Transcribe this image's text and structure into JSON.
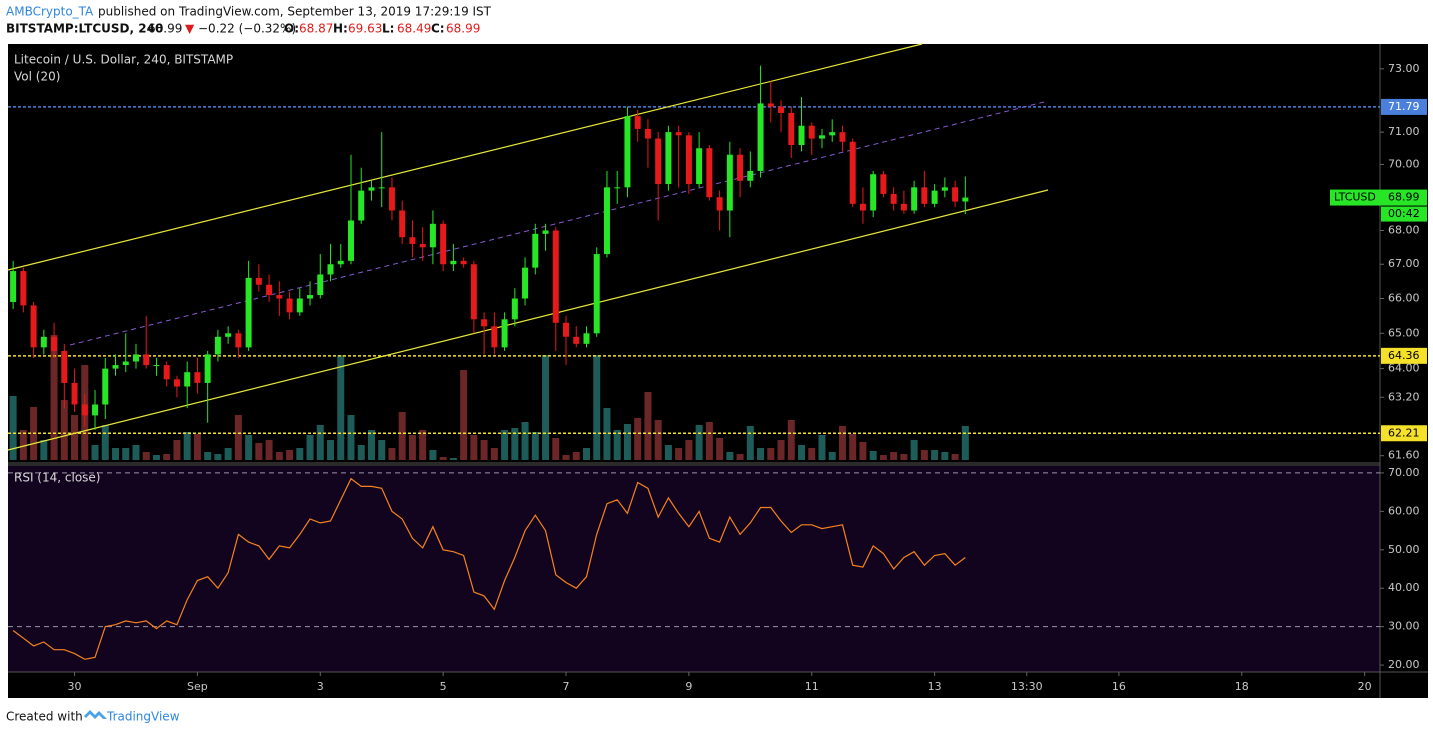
{
  "header": {
    "author": "AMBCrypto_TA",
    "published": "published on TradingView.com, September 13, 2019 17:29:19 IST",
    "symbol": "BITSTAMP:LTCUSD, 240",
    "price": "68.99",
    "change": "−0.22 (−0.32%)",
    "ohlc": [
      {
        "label": "O:",
        "value": "68.87"
      },
      {
        "label": "H:",
        "value": "69.63"
      },
      {
        "label": "L:",
        "value": "68.49"
      },
      {
        "label": "C:",
        "value": "68.99"
      }
    ]
  },
  "chart_data": {
    "type": "candlestick",
    "title": "Litecoin / U.S. Dollar, 240, BITSTAMP",
    "volume_label": "Vol (20)",
    "rsi_label": "RSI (14, close)",
    "log_scale": true,
    "up_color": "#26e626",
    "down_color": "#e61a1a",
    "volume_up_color": "#1d5c59",
    "volume_down_color": "#6b2627",
    "rsi_color": "#f5821f",
    "x": [
      -24,
      -20,
      -16,
      -12,
      -8,
      -4,
      0,
      4,
      8,
      12,
      16,
      20,
      24,
      28,
      32,
      36,
      40,
      44,
      48,
      52,
      56,
      60,
      64,
      68,
      72,
      76,
      80,
      84,
      88,
      92,
      96,
      100,
      104,
      108,
      112,
      116,
      120,
      124,
      128,
      132,
      136,
      140,
      144,
      148,
      152,
      156,
      160,
      164,
      168,
      172,
      176,
      180,
      184,
      188,
      192,
      196,
      200,
      204,
      208,
      212,
      216,
      220,
      224,
      228,
      232,
      236,
      240,
      244,
      248,
      252,
      256,
      260,
      264,
      268,
      272,
      276,
      280,
      284,
      288,
      292,
      296,
      300,
      304,
      308,
      312,
      316,
      320,
      324,
      328,
      332,
      336,
      340,
      344,
      348
    ],
    "open": [
      65.9,
      66.8,
      65.8,
      64.6,
      64.9,
      64.5,
      63.6,
      63.0,
      62.7,
      63.0,
      64.0,
      64.1,
      64.2,
      64.4,
      64.1,
      64.1,
      63.7,
      63.5,
      63.9,
      63.6,
      64.4,
      64.9,
      65.0,
      64.6,
      66.6,
      66.4,
      66.1,
      66.0,
      65.6,
      66.0,
      66.1,
      66.7,
      67.0,
      67.1,
      68.3,
      69.2,
      69.3,
      69.3,
      68.6,
      67.8,
      67.6,
      67.5,
      68.2,
      67.0,
      67.1,
      67.0,
      65.4,
      65.2,
      64.6,
      65.4,
      66.0,
      66.9,
      67.9,
      68.0,
      65.3,
      64.9,
      64.7,
      65.0,
      67.3,
      69.3,
      69.3,
      71.5,
      71.1,
      70.8,
      69.4,
      71.0,
      70.9,
      69.4,
      70.5,
      69.0,
      68.6,
      70.3,
      69.5,
      69.8,
      71.9,
      71.8,
      71.6,
      70.6,
      71.2,
      70.8,
      70.9,
      71.0,
      70.7,
      68.8,
      68.6,
      69.7,
      69.1,
      68.8,
      68.6,
      69.3,
      68.8,
      69.2,
      69.3,
      68.87
    ],
    "high": [
      67.1,
      66.9,
      65.9,
      65.1,
      65.3,
      64.7,
      64.0,
      63.3,
      63.4,
      64.3,
      64.4,
      65.0,
      64.7,
      65.5,
      64.3,
      64.2,
      63.8,
      64.2,
      64.3,
      64.5,
      65.1,
      65.2,
      65.1,
      67.1,
      67.0,
      66.7,
      66.5,
      66.2,
      66.3,
      66.5,
      67.3,
      67.6,
      67.6,
      70.3,
      69.9,
      69.5,
      71.0,
      69.6,
      68.9,
      68.3,
      68.1,
      68.6,
      68.3,
      67.6,
      67.2,
      67.1,
      65.6,
      65.6,
      65.6,
      66.3,
      67.2,
      68.2,
      68.2,
      68.1,
      65.5,
      65.2,
      65.2,
      67.5,
      69.8,
      69.8,
      71.8,
      71.7,
      71.4,
      71.0,
      71.2,
      71.2,
      71.0,
      71.0,
      70.6,
      69.2,
      70.7,
      70.5,
      70.4,
      73.1,
      72.6,
      72.0,
      71.8,
      72.1,
      71.3,
      71.1,
      71.4,
      71.2,
      70.8,
      69.3,
      69.8,
      69.8,
      69.3,
      69.2,
      69.5,
      69.8,
      69.4,
      69.6,
      69.5,
      69.63
    ],
    "low": [
      65.7,
      65.6,
      64.3,
      64.4,
      64.3,
      62.9,
      62.8,
      62.4,
      62.3,
      62.6,
      63.8,
      63.9,
      64.0,
      64.0,
      63.8,
      63.5,
      63.2,
      62.9,
      63.3,
      62.5,
      64.2,
      64.7,
      64.3,
      64.5,
      66.2,
      65.9,
      65.5,
      65.4,
      65.5,
      65.8,
      66.0,
      66.5,
      66.9,
      67.0,
      68.2,
      68.9,
      68.7,
      68.3,
      67.6,
      67.2,
      67.1,
      67.0,
      66.8,
      66.8,
      66.9,
      65.0,
      64.4,
      64.4,
      64.5,
      65.2,
      65.8,
      66.7,
      67.4,
      64.5,
      64.1,
      64.6,
      64.6,
      64.9,
      67.2,
      68.8,
      69.0,
      70.7,
      69.9,
      68.3,
      69.2,
      69.3,
      69.1,
      69.3,
      68.9,
      68.0,
      67.8,
      69.0,
      69.3,
      69.6,
      71.3,
      71.0,
      70.2,
      70.4,
      70.3,
      70.5,
      70.7,
      70.4,
      68.7,
      68.2,
      68.4,
      69.0,
      68.6,
      68.5,
      68.5,
      68.7,
      68.7,
      69.0,
      68.7,
      68.49
    ],
    "close": [
      66.8,
      65.8,
      64.6,
      64.9,
      64.5,
      63.6,
      63.0,
      62.7,
      63.0,
      64.0,
      64.1,
      64.2,
      64.4,
      64.1,
      64.1,
      63.7,
      63.5,
      63.9,
      63.6,
      64.4,
      64.9,
      65.0,
      64.6,
      66.6,
      66.4,
      66.1,
      66.0,
      65.6,
      66.0,
      66.1,
      66.7,
      67.0,
      67.1,
      68.3,
      69.2,
      69.3,
      69.3,
      68.6,
      67.8,
      67.6,
      67.5,
      68.2,
      67.0,
      67.1,
      67.0,
      65.4,
      65.2,
      64.6,
      65.4,
      66.0,
      66.9,
      67.9,
      68.0,
      65.3,
      64.9,
      64.7,
      65.0,
      67.3,
      69.3,
      69.3,
      71.5,
      71.1,
      70.8,
      69.4,
      71.0,
      70.9,
      69.4,
      70.5,
      69.0,
      68.6,
      70.3,
      69.5,
      69.8,
      71.9,
      71.8,
      71.6,
      70.6,
      71.2,
      70.8,
      70.9,
      71.0,
      70.7,
      68.8,
      68.6,
      69.7,
      69.1,
      68.8,
      68.6,
      69.3,
      68.8,
      69.2,
      69.3,
      68.87,
      68.99
    ],
    "volume": [
      64,
      30,
      53,
      20,
      125,
      60,
      45,
      95,
      15,
      35,
      12,
      12,
      15,
      8,
      5,
      6,
      20,
      28,
      26,
      8,
      6,
      12,
      45,
      25,
      17,
      20,
      8,
      10,
      12,
      25,
      35,
      20,
      105,
      45,
      15,
      30,
      20,
      12,
      48,
      25,
      30,
      10,
      3,
      2,
      90,
      25,
      20,
      12,
      30,
      32,
      38,
      28,
      105,
      22,
      5,
      8,
      12,
      105,
      52,
      30,
      36,
      42,
      68,
      40,
      15,
      12,
      20,
      35,
      38,
      22,
      8,
      6,
      34,
      12,
      12,
      20,
      40,
      15,
      12,
      25,
      8,
      34,
      26,
      18,
      9,
      5,
      8,
      6,
      20,
      10,
      10,
      8,
      6,
      34
    ],
    "rsi": [
      29,
      27,
      25,
      26,
      24,
      24,
      23,
      21.5,
      22,
      30,
      30.5,
      31.5,
      31,
      31.5,
      29.5,
      31.5,
      30.5,
      37,
      42,
      43,
      40,
      44,
      54,
      52,
      51,
      47.5,
      51,
      50.5,
      54,
      58,
      57,
      57.5,
      63,
      68.5,
      66.5,
      66.5,
      66,
      60,
      58,
      53,
      50.5,
      56,
      50,
      49.5,
      48.5,
      39,
      38,
      34.5,
      42,
      48,
      55,
      59,
      55,
      43.5,
      41.5,
      40,
      43,
      54,
      62,
      63,
      59.5,
      67.5,
      66,
      58.5,
      63.5,
      59.5,
      56,
      60,
      53,
      52,
      58.5,
      54,
      57,
      61,
      61,
      57.5,
      54.5,
      56.5,
      56.5,
      55.5,
      56,
      56.5,
      46,
      45.5,
      51,
      49,
      45,
      48,
      49.5,
      46,
      48.5,
      49,
      46,
      48
    ],
    "xlim": [
      -26,
      510
    ],
    "xticks": [
      {
        "value": 0,
        "label": "30"
      },
      {
        "value": 48,
        "label": "Sep"
      },
      {
        "value": 96,
        "label": "3"
      },
      {
        "value": 144,
        "label": "5"
      },
      {
        "value": 192,
        "label": "7"
      },
      {
        "value": 240,
        "label": "9"
      },
      {
        "value": 288,
        "label": "11"
      },
      {
        "value": 336,
        "label": "13"
      },
      {
        "value": 372,
        "label": "13:30"
      },
      {
        "value": 408,
        "label": "16"
      },
      {
        "value": 456,
        "label": "18"
      },
      {
        "value": 504,
        "label": "20"
      }
    ],
    "ylim": [
      61.43,
      73.8
    ],
    "yticks": [
      {
        "value": 73,
        "label": "73.00"
      },
      {
        "value": 71,
        "label": "71.00"
      },
      {
        "value": 70,
        "label": "70.00"
      },
      {
        "value": 68,
        "label": "68.00"
      },
      {
        "value": 67,
        "label": "67.00"
      },
      {
        "value": 66,
        "label": "66.00"
      },
      {
        "value": 65,
        "label": "65.00"
      },
      {
        "value": 64,
        "label": "64.00"
      },
      {
        "value": 63.2,
        "label": "63.20"
      },
      {
        "value": 61.6,
        "label": "61.60"
      }
    ],
    "y2lim": [
      18.2,
      71.8
    ],
    "y2ticks": [
      {
        "value": 70,
        "label": "70.00"
      },
      {
        "value": 60,
        "label": "60.00"
      },
      {
        "value": 50,
        "label": "50.00"
      },
      {
        "value": 40,
        "label": "40.00"
      },
      {
        "value": 30,
        "label": "30.00"
      },
      {
        "value": 20,
        "label": "20.00"
      }
    ],
    "rsi_bands": [
      70,
      30
    ],
    "levels": [
      {
        "value": 71.79,
        "color": "#4a7fdc"
      },
      {
        "value": 64.36,
        "color": "#f5e12a"
      },
      {
        "value": 62.21,
        "color": "#f5e12a"
      }
    ],
    "symbol_badge": "LTCUSD",
    "last_price": 68.99,
    "countdown": "00:42"
  },
  "footer": {
    "created": "Created with",
    "brand": "TradingView"
  }
}
